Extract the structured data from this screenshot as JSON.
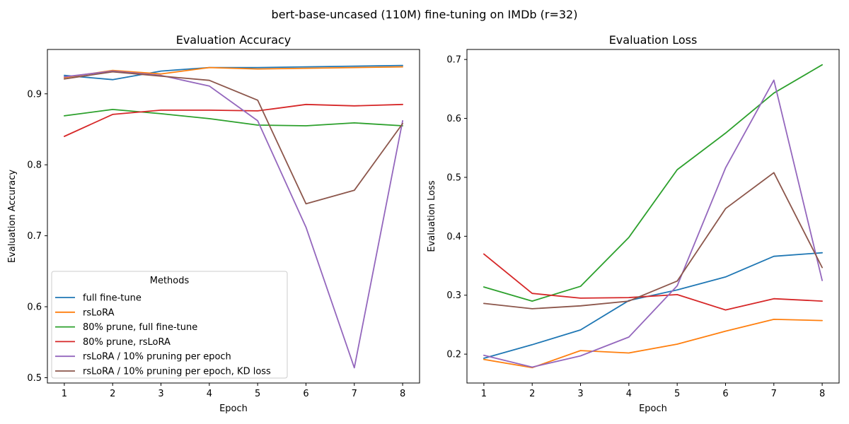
{
  "figure": {
    "suptitle": "bert-base-uncased (110M) fine-tuning on IMDb (r=32)"
  },
  "chart_data": [
    {
      "type": "line",
      "title": "Evaluation Accuracy",
      "xlabel": "Epoch",
      "ylabel": "Evaluation Accuracy",
      "x": [
        1,
        2,
        3,
        4,
        5,
        6,
        7,
        8
      ],
      "xticks": [
        "1",
        "2",
        "3",
        "4",
        "5",
        "6",
        "7",
        "8"
      ],
      "xlim": [
        0.65,
        8.35
      ],
      "yticks": [
        "0.5",
        "0.6",
        "0.7",
        "0.8",
        "0.9"
      ],
      "ytick_values": [
        0.5,
        0.6,
        0.7,
        0.8,
        0.9
      ],
      "ylim": [
        0.4925,
        0.9625
      ],
      "grid": false,
      "legend": {
        "title": "Methods",
        "placement": "lower-left"
      },
      "series": [
        {
          "name": "full fine-tune",
          "color": "#1f77b4",
          "values": [
            0.926,
            0.92,
            0.932,
            0.937,
            0.937,
            0.938,
            0.939,
            0.94
          ]
        },
        {
          "name": "rsLoRA",
          "color": "#ff7f0e",
          "values": [
            0.923,
            0.933,
            0.928,
            0.937,
            0.935,
            0.936,
            0.937,
            0.938
          ]
        },
        {
          "name": "80% prune, full fine-tune",
          "color": "#2ca02c",
          "values": [
            0.869,
            0.878,
            0.872,
            0.865,
            0.856,
            0.855,
            0.859,
            0.855
          ]
        },
        {
          "name": "80% prune, rsLoRA",
          "color": "#d62728",
          "values": [
            0.84,
            0.871,
            0.877,
            0.877,
            0.876,
            0.885,
            0.883,
            0.885
          ]
        },
        {
          "name": "rsLoRA / 10% pruning per epoch",
          "color": "#9467bd",
          "values": [
            0.924,
            0.932,
            0.926,
            0.911,
            0.862,
            0.712,
            0.514,
            0.862
          ]
        },
        {
          "name": "rsLoRA / 10% pruning per epoch, KD loss",
          "color": "#8c564b",
          "values": [
            0.921,
            0.931,
            0.925,
            0.919,
            0.891,
            0.745,
            0.764,
            0.858
          ]
        }
      ]
    },
    {
      "type": "line",
      "title": "Evaluation Loss",
      "xlabel": "Epoch",
      "ylabel": "Evaluation Loss",
      "x": [
        1,
        2,
        3,
        4,
        5,
        6,
        7,
        8
      ],
      "xticks": [
        "1",
        "2",
        "3",
        "4",
        "5",
        "6",
        "7",
        "8"
      ],
      "xlim": [
        0.65,
        8.35
      ],
      "yticks": [
        "0.2",
        "0.3",
        "0.4",
        "0.5",
        "0.6",
        "0.7"
      ],
      "ytick_values": [
        0.2,
        0.3,
        0.4,
        0.5,
        0.6,
        0.7
      ],
      "ylim": [
        0.151,
        0.717
      ],
      "grid": false,
      "series": [
        {
          "name": "full fine-tune",
          "color": "#1f77b4",
          "values": [
            0.193,
            0.216,
            0.241,
            0.291,
            0.309,
            0.331,
            0.366,
            0.372
          ]
        },
        {
          "name": "rsLoRA",
          "color": "#ff7f0e",
          "values": [
            0.191,
            0.177,
            0.206,
            0.202,
            0.217,
            0.239,
            0.259,
            0.257
          ]
        },
        {
          "name": "80% prune, full fine-tune",
          "color": "#2ca02c",
          "values": [
            0.314,
            0.29,
            0.315,
            0.398,
            0.513,
            0.575,
            0.643,
            0.691
          ]
        },
        {
          "name": "80% prune, rsLoRA",
          "color": "#d62728",
          "values": [
            0.37,
            0.303,
            0.295,
            0.296,
            0.301,
            0.275,
            0.294,
            0.29
          ]
        },
        {
          "name": "rsLoRA / 10% pruning per epoch",
          "color": "#9467bd",
          "values": [
            0.198,
            0.178,
            0.197,
            0.229,
            0.316,
            0.516,
            0.665,
            0.325
          ]
        },
        {
          "name": "rsLoRA / 10% pruning per epoch, KD loss",
          "color": "#8c564b",
          "values": [
            0.286,
            0.277,
            0.282,
            0.29,
            0.324,
            0.447,
            0.508,
            0.347
          ]
        }
      ]
    }
  ]
}
